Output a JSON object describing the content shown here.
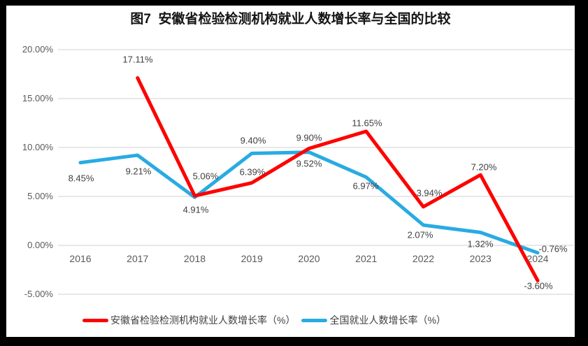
{
  "title": "图7  安徽省检验检测机构就业人数增长率与全国的比较",
  "legend": {
    "series1_label": "安徽省检验检测机构就业人数增长率（%）",
    "series2_label": "全国就业人数增长率（%）"
  },
  "colors": {
    "series1": "#ff0000",
    "series2": "#29abe2",
    "gridline": "#d9d9d9",
    "axis_text": "#595959",
    "label_text": "#3f3f3f"
  },
  "chart_data": {
    "type": "line",
    "title": "图7  安徽省检验检测机构就业人数增长率与全国的比较",
    "categories": [
      "2016",
      "2017",
      "2018",
      "2019",
      "2020",
      "2021",
      "2022",
      "2023",
      "2024"
    ],
    "series": [
      {
        "name": "安徽省检验检测机构就业人数增长率（%）",
        "color": "#ff0000",
        "values": [
          null,
          17.11,
          5.06,
          6.39,
          9.9,
          11.65,
          3.94,
          7.2,
          -3.6
        ],
        "point_labels": [
          null,
          "17.11%",
          "5.06%",
          "6.39%",
          "9.90%",
          "11.65%",
          "3.94%",
          "7.20%",
          "-3.60%"
        ]
      },
      {
        "name": "全国就业人数增长率（%）",
        "color": "#29abe2",
        "values": [
          8.45,
          9.21,
          4.91,
          9.4,
          9.52,
          6.97,
          2.07,
          1.32,
          -0.76
        ],
        "point_labels": [
          "8.45%",
          "9.21%",
          "4.91%",
          "9.40%",
          "9.52%",
          "6.97%",
          "2.07%",
          "1.32%",
          "-0.76%"
        ]
      }
    ],
    "y_ticks": [
      "20.00%",
      "15.00%",
      "10.00%",
      "5.00%",
      "0.00%",
      "-5.00%"
    ],
    "y_tick_values": [
      20,
      15,
      10,
      5,
      0,
      -5
    ],
    "ylim": [
      -5,
      20
    ],
    "grid": true,
    "legend_position": "bottom"
  }
}
